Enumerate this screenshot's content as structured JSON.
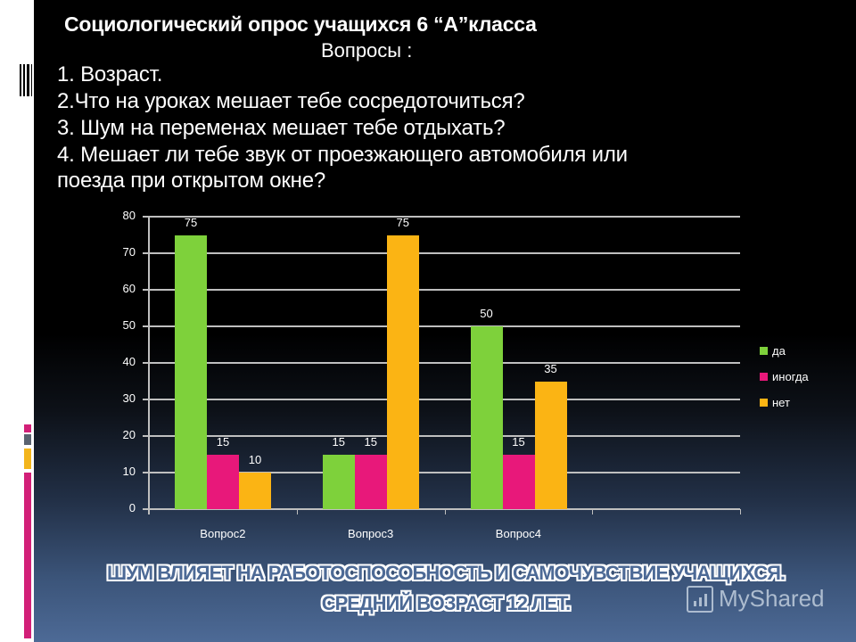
{
  "slide": {
    "title": "Социологический опрос учащихся 6 “А”класса",
    "subtitle": "Вопросы :",
    "questions": [
      "1. Возраст.",
      "2.Что на уроках мешает тебе сосредоточиться?",
      "3. Шум на переменах мешает тебе отдыхать?",
      "4. Мешает ли тебе звук от проезжающего автомобиля или",
      "поезда при открытом окне?"
    ],
    "conclusion_line1": "ШУМ ВЛИЯЕТ НА РАБОТОСПОСОБНОСТЬ И САМОЧУВСТВИЕ УЧАЩИХСЯ.",
    "conclusion_line2": "СРЕДНИЙ ВОЗРАСТ 12 ЛЕТ.",
    "watermark": "MyShared"
  },
  "colors": {
    "da": "#7ed13b",
    "inogda": "#e8187a",
    "net": "#fbb414",
    "grid": "#bfbfbf",
    "accent_pink": "#d21f78",
    "accent_gray": "#5a6370",
    "accent_yellow": "#f3b51c"
  },
  "chart_data": {
    "type": "bar",
    "title": "",
    "xlabel": "",
    "ylabel": "",
    "categories": [
      "Вопрос 2",
      "Вопрос 3",
      "Вопрос 4",
      ""
    ],
    "category_labels_display": [
      "Вопрос2",
      "Вопрос3",
      "Вопрос4",
      ""
    ],
    "series": [
      {
        "name": "да",
        "values": [
          75,
          15,
          50,
          null
        ]
      },
      {
        "name": "иногда",
        "values": [
          15,
          15,
          15,
          null
        ]
      },
      {
        "name": "нет",
        "values": [
          10,
          75,
          35,
          null
        ]
      }
    ],
    "ylim": [
      0,
      80
    ],
    "yticks": [
      0,
      10,
      20,
      30,
      40,
      50,
      60,
      70,
      80
    ],
    "grid": true,
    "data_labels": true,
    "legend": {
      "position": "right",
      "entries": [
        "да",
        "иногда",
        "нет"
      ]
    }
  }
}
